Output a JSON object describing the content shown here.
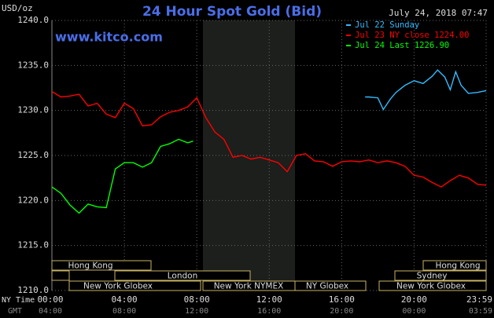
{
  "chart_data": {
    "type": "line",
    "title": "24 Hour Spot Gold (Bid)",
    "y_unit": "USD/oz",
    "timestamp": "July 24, 2018 07:47",
    "watermark": "www.kitco.com",
    "x_axis_label": "NY Time",
    "x2_axis_label": "GMT",
    "xlim": [
      0,
      23.98
    ],
    "xticks": [
      {
        "value": 0,
        "label": "00:00"
      },
      {
        "value": 4,
        "label": "04:00"
      },
      {
        "value": 8,
        "label": "08:00"
      },
      {
        "value": 12,
        "label": "12:00"
      },
      {
        "value": 16,
        "label": "16:00"
      },
      {
        "value": 20,
        "label": "20:00"
      },
      {
        "value": 23.98,
        "label": "23:59"
      }
    ],
    "x2tick_labels": [
      "04:00",
      "08:00",
      "12:00",
      "16:00",
      "20:00",
      "00:00",
      "03:59"
    ],
    "ylim": [
      1210,
      1240
    ],
    "yticks": [
      {
        "value": 1210,
        "label": "1210.0"
      },
      {
        "value": 1215,
        "label": "1215.0"
      },
      {
        "value": 1220,
        "label": "1220.0"
      },
      {
        "value": 1225,
        "label": "1225.0"
      },
      {
        "value": 1230,
        "label": "1230.0"
      },
      {
        "value": 1235,
        "label": "1235.0"
      },
      {
        "value": 1240,
        "label": "1240.0"
      }
    ],
    "grid": true,
    "legend": "top-right",
    "sessions": [
      "Hong Kong",
      "London",
      "New York Globex",
      "New York NYMEX",
      "NY Globex",
      "Hong Kong",
      "Sydney",
      "New York Globex"
    ],
    "series": [
      {
        "name": "Jul 22 Sunday",
        "color": "#33bbff",
        "x": [
          17.3,
          17.5,
          18,
          18.3,
          18.7,
          19,
          19.5,
          20,
          20.5,
          21,
          21.3,
          21.7,
          22,
          22.3,
          22.6,
          23,
          23.5,
          23.98
        ],
        "values": [
          1231.5,
          1231.5,
          1231.4,
          1230.1,
          1231.3,
          1232.0,
          1232.8,
          1233.3,
          1233.0,
          1233.8,
          1234.5,
          1233.7,
          1232.3,
          1234.3,
          1232.8,
          1231.9,
          1232.0,
          1232.2
        ]
      },
      {
        "name": "Jul 23 NY close 1224.00",
        "color": "#ff0000",
        "x": [
          0,
          0.5,
          1,
          1.5,
          2,
          2.5,
          3,
          3.5,
          4,
          4.5,
          5,
          5.5,
          6,
          6.5,
          7,
          7.5,
          8,
          8.5,
          9,
          9.5,
          10,
          10.5,
          11,
          11.5,
          12,
          12.5,
          13,
          13.5,
          14,
          14.5,
          15,
          15.5,
          16,
          16.5,
          17,
          17.5,
          18,
          18.5,
          19,
          19.5,
          20,
          20.5,
          21,
          21.5,
          22,
          22.5,
          23,
          23.5,
          23.98
        ],
        "values": [
          1232.1,
          1231.5,
          1231.6,
          1231.8,
          1230.5,
          1230.8,
          1229.6,
          1229.2,
          1230.8,
          1230.2,
          1228.3,
          1228.4,
          1229.3,
          1229.8,
          1230.0,
          1230.4,
          1231.4,
          1229.2,
          1227.6,
          1226.8,
          1224.8,
          1225.0,
          1224.6,
          1224.8,
          1224.5,
          1224.2,
          1223.2,
          1225.0,
          1225.2,
          1224.4,
          1224.3,
          1223.8,
          1224.3,
          1224.4,
          1224.3,
          1224.5,
          1224.2,
          1224.4,
          1224.2,
          1223.8,
          1222.8,
          1222.6,
          1222.0,
          1221.5,
          1222.2,
          1222.8,
          1222.5,
          1221.8,
          1221.7
        ]
      },
      {
        "name": "Jul 24 Last 1226.90",
        "color": "#00ff00",
        "x": [
          0,
          0.5,
          1,
          1.5,
          2,
          2.5,
          3,
          3.5,
          4,
          4.5,
          5,
          5.5,
          6,
          6.5,
          7,
          7.5,
          7.8
        ],
        "values": [
          1221.5,
          1220.8,
          1219.5,
          1218.6,
          1219.6,
          1219.3,
          1219.2,
          1223.5,
          1224.2,
          1224.2,
          1223.7,
          1224.2,
          1226.0,
          1226.3,
          1226.8,
          1226.4,
          1226.6
        ]
      }
    ]
  }
}
